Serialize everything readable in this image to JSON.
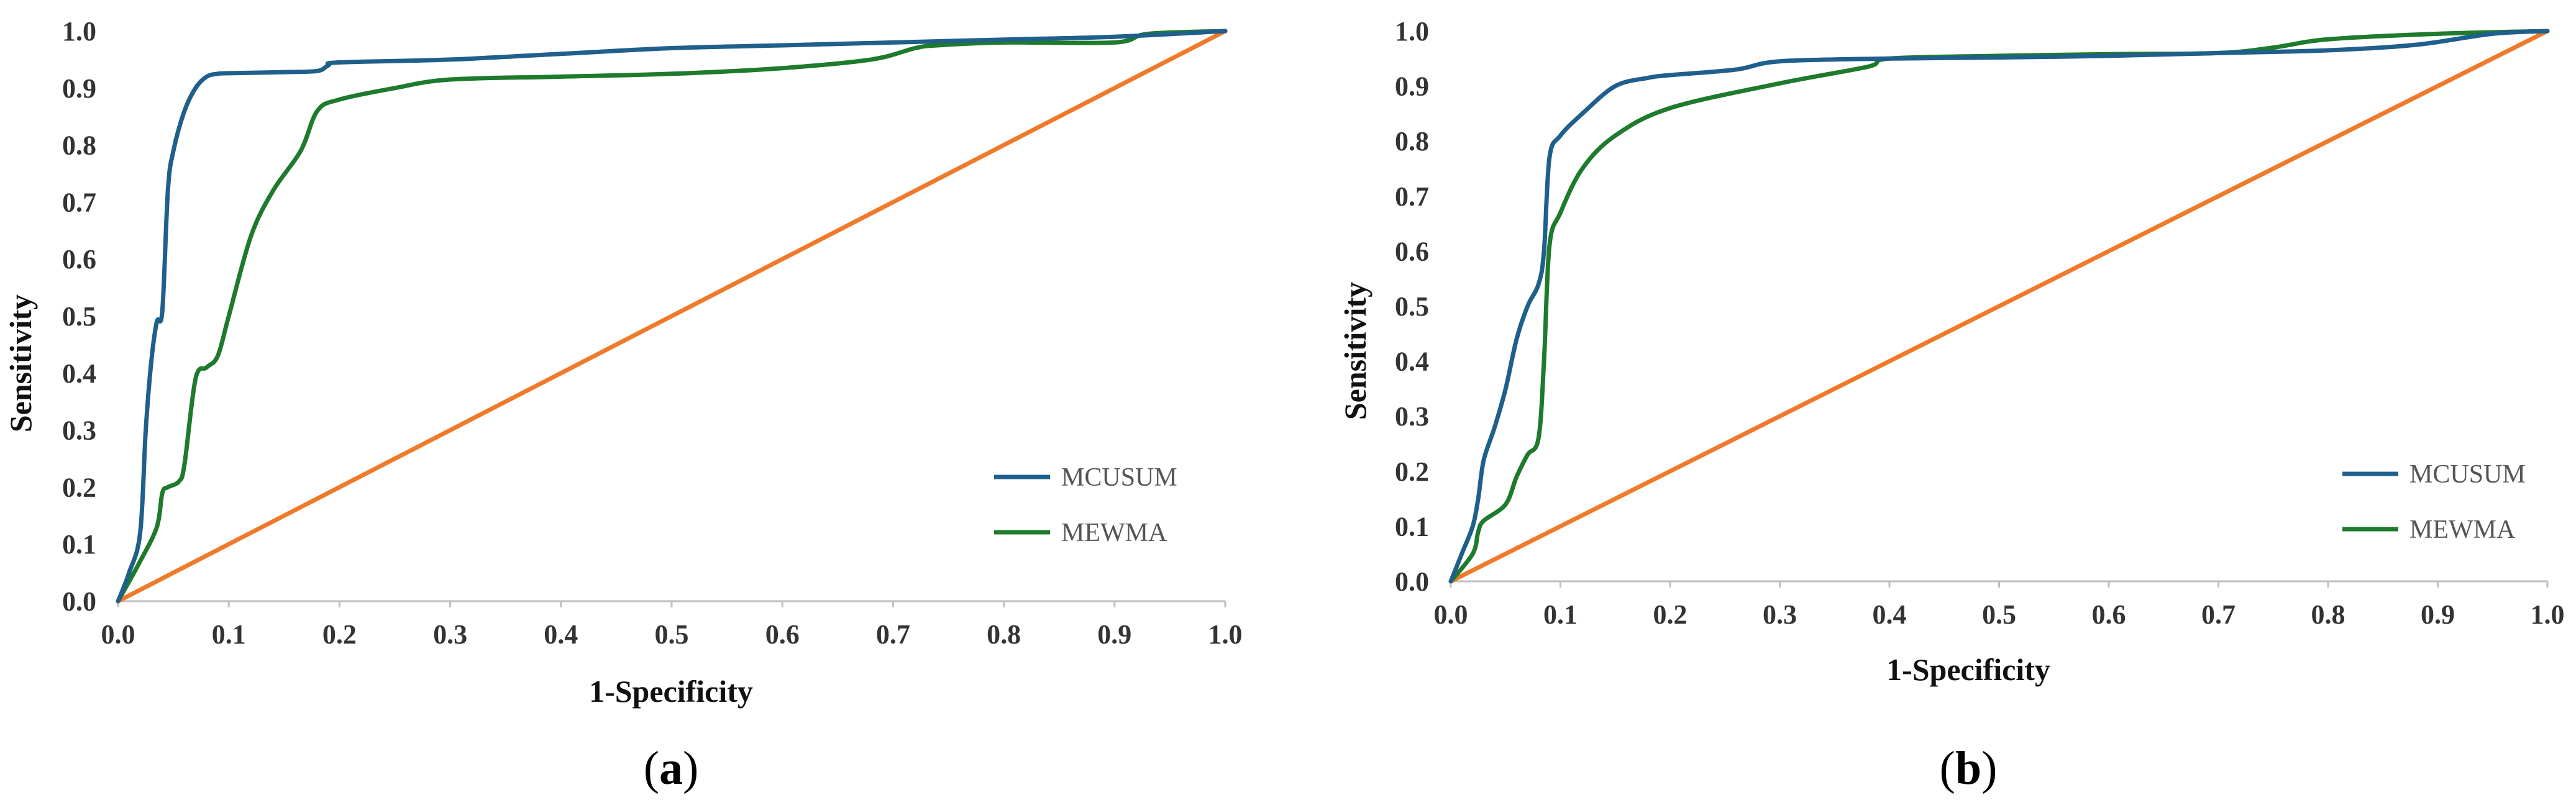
{
  "chart_data": [
    {
      "type": "line",
      "panel_label": "a",
      "xlabel": "1-Specificity",
      "ylabel": "Sensitivity",
      "xlim": [
        0,
        1
      ],
      "ylim": [
        0,
        1
      ],
      "x_ticks": [
        "0.0",
        "0.1",
        "0.2",
        "0.3",
        "0.4",
        "0.5",
        "0.6",
        "0.7",
        "0.8",
        "0.9",
        "1.0"
      ],
      "y_ticks": [
        "0.0",
        "0.1",
        "0.2",
        "0.3",
        "0.4",
        "0.5",
        "0.6",
        "0.7",
        "0.8",
        "0.9",
        "1.0"
      ],
      "legend_position": "lower-right",
      "series": [
        {
          "name": "MCUSUM",
          "color": "#1f5f8b",
          "in_legend": true,
          "x": [
            0.0,
            0.01,
            0.02,
            0.025,
            0.03,
            0.035,
            0.04,
            0.045,
            0.05,
            0.06,
            0.07,
            0.08,
            0.09,
            0.1,
            0.15,
            0.18,
            0.19,
            0.2,
            0.3,
            0.4,
            0.5,
            0.6,
            0.7,
            0.8,
            0.9,
            1.0
          ],
          "y": [
            0.0,
            0.05,
            0.12,
            0.3,
            0.42,
            0.49,
            0.51,
            0.72,
            0.79,
            0.86,
            0.9,
            0.92,
            0.925,
            0.926,
            0.928,
            0.93,
            0.94,
            0.945,
            0.95,
            0.96,
            0.97,
            0.975,
            0.98,
            0.985,
            0.99,
            1.0
          ]
        },
        {
          "name": "MEWMA",
          "color": "#1e7a2c",
          "in_legend": true,
          "x": [
            0.0,
            0.02,
            0.035,
            0.04,
            0.045,
            0.055,
            0.06,
            0.07,
            0.08,
            0.09,
            0.1,
            0.12,
            0.14,
            0.165,
            0.18,
            0.2,
            0.25,
            0.3,
            0.4,
            0.5,
            0.6,
            0.68,
            0.72,
            0.74,
            0.8,
            0.9,
            0.93,
            1.0
          ],
          "y": [
            0.0,
            0.07,
            0.13,
            0.19,
            0.2,
            0.21,
            0.24,
            0.39,
            0.41,
            0.43,
            0.5,
            0.64,
            0.72,
            0.79,
            0.86,
            0.88,
            0.9,
            0.915,
            0.92,
            0.925,
            0.935,
            0.95,
            0.97,
            0.975,
            0.98,
            0.98,
            0.995,
            1.0
          ]
        },
        {
          "name": "reference",
          "color": "#f07a2a",
          "in_legend": false,
          "x": [
            0.0,
            1.0
          ],
          "y": [
            0.0,
            1.0
          ]
        }
      ]
    },
    {
      "type": "line",
      "panel_label": "b",
      "xlabel": "1-Specificity",
      "ylabel": "Sensitivity",
      "xlim": [
        0,
        1
      ],
      "ylim": [
        0,
        1
      ],
      "x_ticks": [
        "0.0",
        "0.1",
        "0.2",
        "0.3",
        "0.4",
        "0.5",
        "0.6",
        "0.7",
        "0.8",
        "0.9",
        "1.0"
      ],
      "y_ticks": [
        "0.0",
        "0.1",
        "0.2",
        "0.3",
        "0.4",
        "0.5",
        "0.6",
        "0.7",
        "0.8",
        "0.9",
        "1.0"
      ],
      "legend_position": "lower-right",
      "series": [
        {
          "name": "MCUSUM",
          "color": "#1f5f8b",
          "in_legend": true,
          "x": [
            0.0,
            0.01,
            0.02,
            0.025,
            0.03,
            0.04,
            0.05,
            0.06,
            0.07,
            0.08,
            0.085,
            0.09,
            0.1,
            0.12,
            0.15,
            0.18,
            0.2,
            0.26,
            0.3,
            0.4,
            0.5,
            0.6,
            0.7,
            0.8,
            0.88,
            0.95,
            1.0
          ],
          "y": [
            0.0,
            0.05,
            0.1,
            0.15,
            0.22,
            0.28,
            0.35,
            0.44,
            0.5,
            0.54,
            0.6,
            0.77,
            0.81,
            0.85,
            0.9,
            0.915,
            0.92,
            0.93,
            0.945,
            0.95,
            0.952,
            0.955,
            0.96,
            0.965,
            0.975,
            0.995,
            1.0
          ]
        },
        {
          "name": "MEWMA",
          "color": "#1e7a2c",
          "in_legend": true,
          "x": [
            0.0,
            0.02,
            0.025,
            0.03,
            0.05,
            0.06,
            0.07,
            0.08,
            0.085,
            0.09,
            0.1,
            0.12,
            0.15,
            0.2,
            0.3,
            0.38,
            0.4,
            0.5,
            0.6,
            0.7,
            0.75,
            0.8,
            0.9,
            1.0
          ],
          "y": [
            0.0,
            0.05,
            0.09,
            0.11,
            0.14,
            0.19,
            0.23,
            0.26,
            0.4,
            0.61,
            0.67,
            0.75,
            0.81,
            0.86,
            0.905,
            0.935,
            0.95,
            0.955,
            0.958,
            0.96,
            0.97,
            0.985,
            0.995,
            1.0
          ]
        },
        {
          "name": "reference",
          "color": "#f07a2a",
          "in_legend": false,
          "x": [
            0.0,
            1.0
          ],
          "y": [
            0.0,
            1.0
          ]
        }
      ]
    }
  ]
}
